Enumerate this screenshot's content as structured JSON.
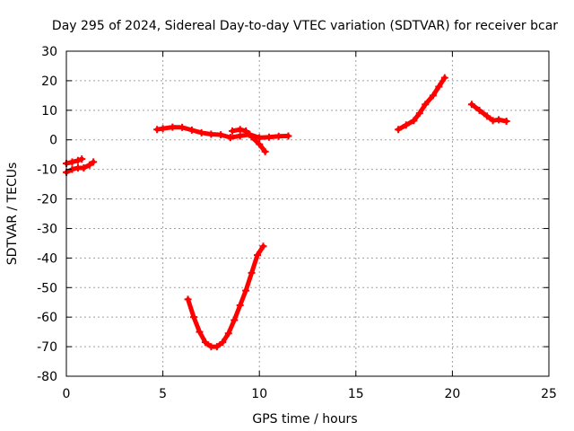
{
  "chart_data": {
    "type": "line",
    "title": "Day 295 of 2024, Sidereal Day-to-day VTEC variation (SDTVAR) for receiver bcar",
    "xlabel": "GPS time / hours",
    "ylabel": "SDTVAR / TECUs",
    "xlim": [
      0,
      25
    ],
    "ylim": [
      -80,
      30
    ],
    "xticks": [
      0,
      5,
      10,
      15,
      20,
      25
    ],
    "yticks": [
      -80,
      -70,
      -60,
      -50,
      -40,
      -30,
      -20,
      -10,
      0,
      10,
      20,
      30
    ],
    "grid": true,
    "legend": "none",
    "series_color": "#ff0000",
    "series": [
      {
        "x": [
          0.0,
          0.3,
          0.6,
          0.8
        ],
        "y": [
          -8,
          -7.5,
          -7,
          -6.5
        ]
      },
      {
        "x": [
          0.0,
          0.3,
          0.6,
          0.9,
          1.2,
          1.4
        ],
        "y": [
          -11,
          -10,
          -9.5,
          -9.5,
          -8.5,
          -7.5
        ]
      },
      {
        "x": [
          4.7,
          5.0,
          5.5,
          6.0,
          6.5,
          7.0,
          7.5,
          8.0,
          8.5,
          9.0,
          9.5,
          10.0,
          10.5,
          11.0,
          11.5
        ],
        "y": [
          3.5,
          3.8,
          4.3,
          4.2,
          3.3,
          2.4,
          1.9,
          1.7,
          0.8,
          1.3,
          1.8,
          0.7,
          0.9,
          1.2,
          1.3
        ]
      },
      {
        "x": [
          8.6,
          9.0,
          9.3,
          9.6,
          10.0,
          10.3
        ],
        "y": [
          3.0,
          3.5,
          3.0,
          1.0,
          -1.5,
          -4.0
        ]
      },
      {
        "x": [
          6.3,
          6.6,
          6.9,
          7.2,
          7.5,
          7.8,
          8.1,
          8.4,
          8.7,
          9.0,
          9.3,
          9.6,
          9.9,
          10.2
        ],
        "y": [
          -54,
          -60,
          -65,
          -68.5,
          -70,
          -70,
          -68.5,
          -65.5,
          -61,
          -56,
          -51,
          -45,
          -39,
          -36
        ]
      },
      {
        "x": [
          17.2,
          17.6,
          18.0,
          18.3,
          18.6,
          19.0,
          19.3,
          19.6
        ],
        "y": [
          3.5,
          5,
          6.5,
          9,
          12,
          15,
          18,
          21
        ]
      },
      {
        "x": [
          21.0,
          21.4,
          21.8,
          22.1,
          22.4,
          22.8
        ],
        "y": [
          12,
          10,
          8,
          6.5,
          6.8,
          6.3
        ]
      }
    ]
  }
}
